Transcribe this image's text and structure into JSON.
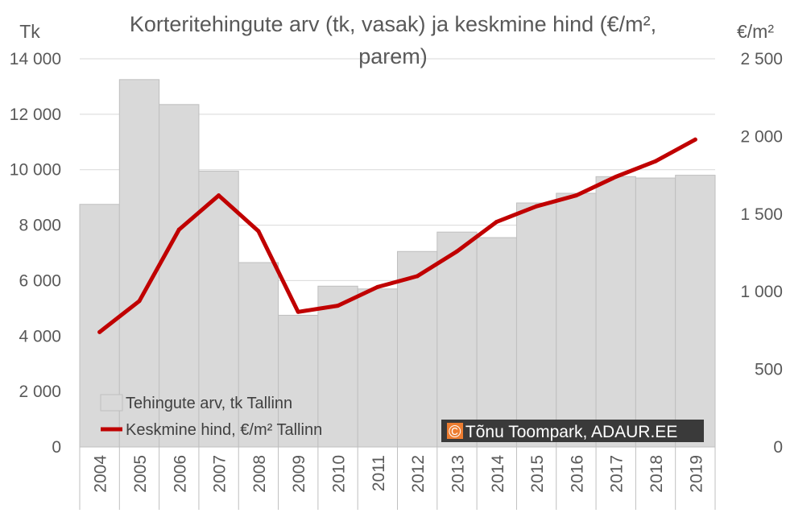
{
  "chart_data": {
    "type": "bar",
    "title_line1": "Korteritehingute arv (tk, vasak) ja keskmine hind (€/m²,",
    "title_line2": "parem)",
    "y_left_unit": "Tk",
    "y_right_unit": "€/m²",
    "categories": [
      "2004",
      "2005",
      "2006",
      "2007",
      "2008",
      "2009",
      "2010",
      "2011",
      "2012",
      "2013",
      "2014",
      "2015",
      "2016",
      "2017",
      "2018",
      "2019"
    ],
    "ylim_left": [
      0,
      14000
    ],
    "ylim_right": [
      0,
      2500
    ],
    "y_left_ticks": [
      "0",
      "2 000",
      "4 000",
      "6 000",
      "8 000",
      "10 000",
      "12 000",
      "14 000"
    ],
    "y_right_ticks": [
      "0",
      "500",
      "1 000",
      "1 500",
      "2 000",
      "2 500"
    ],
    "grid": true,
    "legend_position": "bottom-left",
    "series": [
      {
        "name": "Tehingute arv, tk Tallinn",
        "type": "bar",
        "axis": "left",
        "color": "#d9d9d9",
        "values": [
          8750,
          13250,
          12350,
          9950,
          6650,
          4750,
          5800,
          5700,
          7050,
          7750,
          7550,
          8800,
          9150,
          9750,
          9700,
          9800
        ]
      },
      {
        "name": "Keskmine hind, €/m² Tallinn",
        "type": "line",
        "axis": "right",
        "color": "#c00000",
        "values": [
          740,
          940,
          1400,
          1620,
          1390,
          870,
          910,
          1030,
          1100,
          1260,
          1450,
          1550,
          1620,
          1740,
          1840,
          1980
        ]
      }
    ],
    "credit": "© Tõnu Toompark, ADAUR.EE",
    "credit_color": "#ed7d31"
  }
}
